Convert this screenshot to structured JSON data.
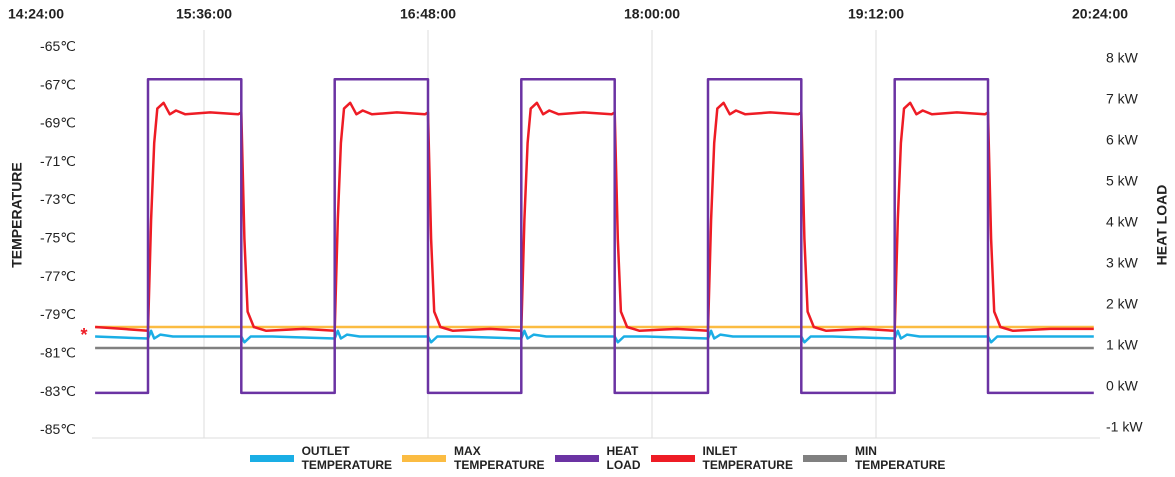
{
  "chart_data": {
    "type": "line",
    "y_label": "TEMPERATURE",
    "y2_label": "HEAT LOAD",
    "annotations": [
      "*"
    ],
    "xlim": [
      900,
      1224
    ],
    "xticks": [
      {
        "value": 864,
        "label": "14:24:00"
      },
      {
        "value": 936,
        "label": "15:36:00"
      },
      {
        "value": 1008,
        "label": "16:48:00"
      },
      {
        "value": 1080,
        "label": "18:00:00"
      },
      {
        "value": 1152,
        "label": "19:12:00"
      },
      {
        "value": 1224,
        "label": "20:24:00"
      }
    ],
    "ylim": [
      -85.5,
      -64.1
    ],
    "yticks": [
      {
        "value": -65,
        "label": "-65℃"
      },
      {
        "value": -67,
        "label": "-67℃"
      },
      {
        "value": -69,
        "label": "-69℃"
      },
      {
        "value": -71,
        "label": "-71℃"
      },
      {
        "value": -73,
        "label": "-73℃"
      },
      {
        "value": -75,
        "label": "-75℃"
      },
      {
        "value": -77,
        "label": "-77℃"
      },
      {
        "value": -79,
        "label": "-79℃"
      },
      {
        "value": -81,
        "label": "-81℃"
      },
      {
        "value": -83,
        "label": "-83℃"
      },
      {
        "value": -85,
        "label": "-85℃"
      }
    ],
    "y2lim": [
      -1.3,
      8.7
    ],
    "y2ticks": [
      {
        "value": 8,
        "label": "8 kW"
      },
      {
        "value": 7,
        "label": "7 kW"
      },
      {
        "value": 6,
        "label": "6 kW"
      },
      {
        "value": 5,
        "label": "5 kW"
      },
      {
        "value": 4,
        "label": "4 kW"
      },
      {
        "value": 3,
        "label": "3 kW"
      },
      {
        "value": 2,
        "label": "2 kW"
      },
      {
        "value": 1,
        "label": "1 kW"
      },
      {
        "value": 0,
        "label": "0 kW"
      },
      {
        "value": -1,
        "label": "-1 kW"
      }
    ],
    "grid": true,
    "legend": "bottom",
    "series": [
      {
        "name": "OUTLET TEMPERATURE",
        "color": "#1aaee5",
        "x": [
          901,
          918,
          919,
          920,
          922,
          926,
          938,
          948,
          949,
          951,
          958,
          978,
          979,
          980,
          982,
          986,
          998,
          1008,
          1009,
          1011,
          1018,
          1038,
          1039,
          1040,
          1042,
          1046,
          1058,
          1068,
          1069,
          1071,
          1078,
          1098,
          1099,
          1100,
          1102,
          1106,
          1118,
          1128,
          1129,
          1131,
          1138,
          1158,
          1159,
          1160,
          1162,
          1166,
          1178,
          1188,
          1189,
          1191,
          1198,
          1222
        ],
        "values": [
          -80.1,
          -80.2,
          -79.8,
          -80.2,
          -80,
          -80.1,
          -80.1,
          -80.1,
          -80.4,
          -80.1,
          -80.1,
          -80.2,
          -79.8,
          -80.2,
          -80,
          -80.1,
          -80.1,
          -80.1,
          -80.4,
          -80.1,
          -80.1,
          -80.2,
          -79.8,
          -80.2,
          -80,
          -80.1,
          -80.1,
          -80.1,
          -80.4,
          -80.1,
          -80.1,
          -80.2,
          -79.8,
          -80.2,
          -80,
          -80.1,
          -80.1,
          -80.1,
          -80.4,
          -80.1,
          -80.1,
          -80.2,
          -79.8,
          -80.2,
          -80,
          -80.1,
          -80.1,
          -80.1,
          -80.4,
          -80.1,
          -80.1,
          -80.1
        ]
      },
      {
        "name": "MAX TEMPERATURE",
        "color": "#fbbc42",
        "x": [
          901,
          1222
        ],
        "values": [
          -79.6,
          -79.6
        ]
      },
      {
        "name": "HEAT LOAD",
        "color": "#6b33a3",
        "axis": "y2",
        "x": [
          901,
          918,
          918,
          948,
          948,
          978,
          978,
          1008,
          1008,
          1038,
          1038,
          1068,
          1068,
          1098,
          1098,
          1128,
          1128,
          1158,
          1158,
          1188,
          1188,
          1222
        ],
        "values": [
          -0.15,
          -0.15,
          7.5,
          7.5,
          -0.15,
          -0.15,
          7.5,
          7.5,
          -0.15,
          -0.15,
          7.5,
          7.5,
          -0.15,
          -0.15,
          7.5,
          7.5,
          -0.15,
          -0.15,
          7.5,
          7.5,
          -0.15,
          -0.15
        ]
      },
      {
        "name": "INLET TEMPERATURE",
        "color": "#ee1c25",
        "x": [
          901,
          910,
          918,
          919,
          920,
          921,
          923,
          925,
          927,
          930,
          938,
          947,
          948,
          949,
          950,
          952,
          956,
          968,
          978,
          979,
          980,
          981,
          983,
          985,
          987,
          990,
          998,
          1007,
          1008,
          1009,
          1010,
          1012,
          1016,
          1028,
          1038,
          1039,
          1040,
          1041,
          1043,
          1045,
          1047,
          1050,
          1058,
          1067,
          1068,
          1069,
          1070,
          1072,
          1076,
          1088,
          1098,
          1099,
          1100,
          1101,
          1103,
          1105,
          1107,
          1110,
          1118,
          1127,
          1128,
          1129,
          1130,
          1132,
          1136,
          1148,
          1158,
          1159,
          1160,
          1161,
          1163,
          1165,
          1167,
          1170,
          1178,
          1187,
          1188,
          1189,
          1190,
          1192,
          1196,
          1208,
          1222
        ],
        "values": [
          -79.6,
          -79.7,
          -79.8,
          -74,
          -70,
          -68.2,
          -67.9,
          -68.5,
          -68.3,
          -68.5,
          -68.4,
          -68.5,
          -68.4,
          -75,
          -78.8,
          -79.6,
          -79.8,
          -79.7,
          -79.8,
          -74,
          -70,
          -68.2,
          -67.9,
          -68.5,
          -68.3,
          -68.5,
          -68.4,
          -68.5,
          -68.4,
          -75,
          -78.8,
          -79.6,
          -79.8,
          -79.7,
          -79.8,
          -74,
          -70,
          -68.2,
          -67.9,
          -68.5,
          -68.3,
          -68.5,
          -68.4,
          -68.5,
          -68.4,
          -75,
          -78.8,
          -79.6,
          -79.8,
          -79.7,
          -79.8,
          -74,
          -70,
          -68.2,
          -67.9,
          -68.5,
          -68.3,
          -68.5,
          -68.4,
          -68.5,
          -68.4,
          -75,
          -78.8,
          -79.6,
          -79.8,
          -79.7,
          -79.8,
          -74,
          -70,
          -68.2,
          -67.9,
          -68.5,
          -68.3,
          -68.5,
          -68.4,
          -68.5,
          -68.4,
          -75,
          -78.8,
          -79.6,
          -79.8,
          -79.7,
          -79.7
        ]
      },
      {
        "name": "MIN TEMPERATURE",
        "color": "#808080",
        "x": [
          901,
          1222
        ],
        "values": [
          -80.7,
          -80.7
        ]
      }
    ]
  }
}
